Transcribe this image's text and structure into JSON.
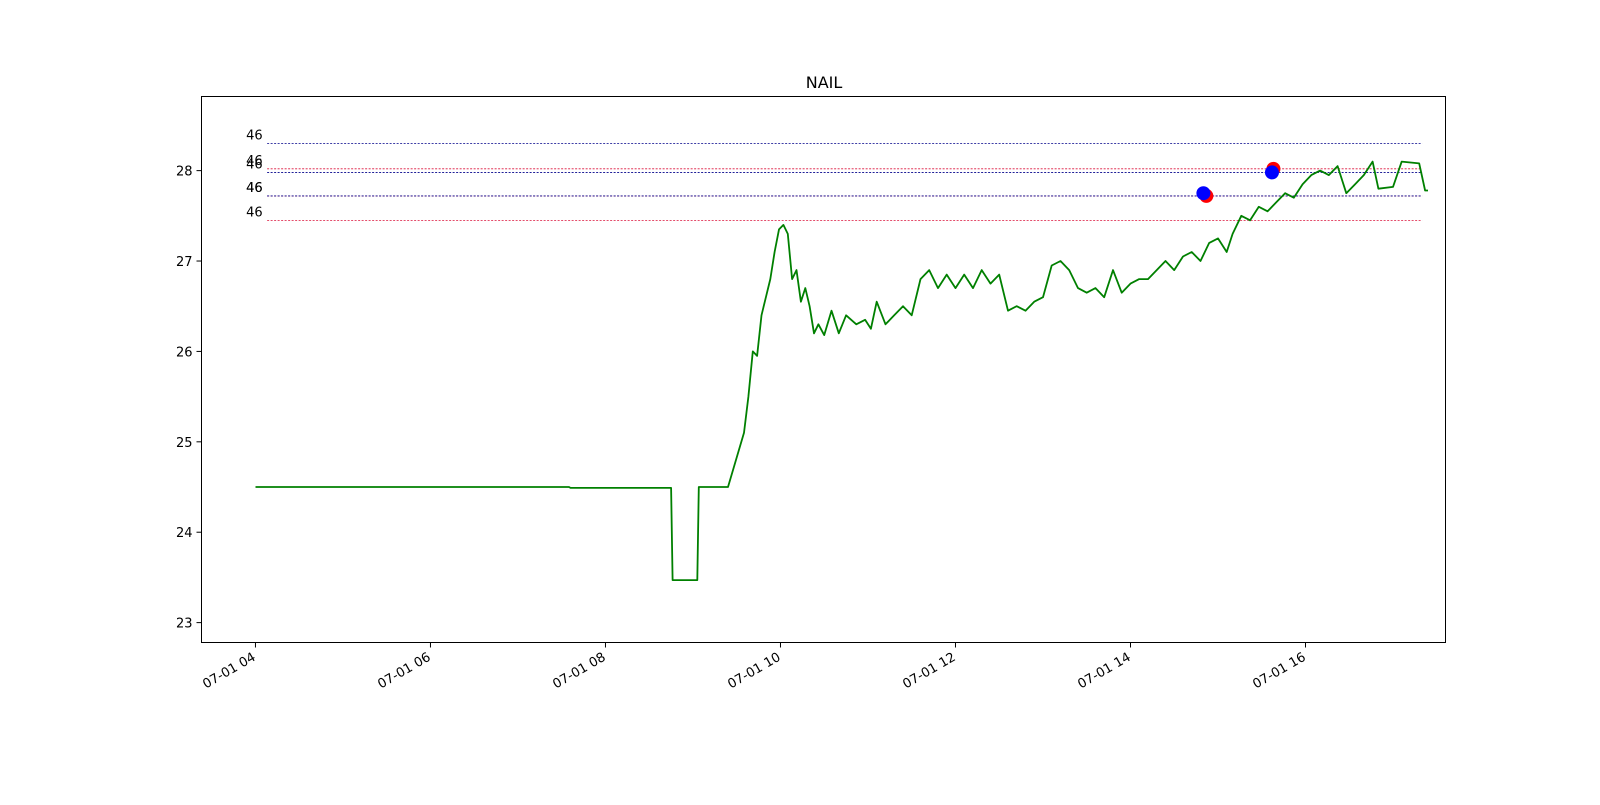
{
  "chart_data": {
    "type": "line",
    "title": "NAIL",
    "xlabel": "",
    "ylabel": "",
    "xlim": [
      "07-01 03:23",
      "07-01 17:36"
    ],
    "ylim": [
      22.78,
      28.82
    ],
    "grid": false,
    "legend": "none",
    "x_ticks": [
      "07-01 04",
      "07-01 06",
      "07-01 08",
      "07-01 10",
      "07-01 12",
      "07-01 14",
      "07-01 16"
    ],
    "y_ticks": [
      "23",
      "24",
      "25",
      "26",
      "27",
      "28"
    ],
    "series": [
      {
        "color": "#008000",
        "points": [
          [
            "07-01 04:00",
            24.5
          ],
          [
            "07-01 07:35",
            24.5
          ],
          [
            "07-01 07:36",
            24.49
          ],
          [
            "07-01 08:45",
            24.49
          ],
          [
            "07-01 08:46",
            23.47
          ],
          [
            "07-01 09:03",
            23.47
          ],
          [
            "07-01 09:04",
            24.5
          ],
          [
            "07-01 09:24",
            24.5
          ],
          [
            "07-01 09:35",
            25.1
          ],
          [
            "07-01 09:38",
            25.5
          ],
          [
            "07-01 09:41",
            26.0
          ],
          [
            "07-01 09:44",
            25.95
          ],
          [
            "07-01 09:47",
            26.4
          ],
          [
            "07-01 09:50",
            26.6
          ],
          [
            "07-01 09:53",
            26.8
          ],
          [
            "07-01 09:56",
            27.1
          ],
          [
            "07-01 09:59",
            27.35
          ],
          [
            "07-01 10:02",
            27.4
          ],
          [
            "07-01 10:05",
            27.3
          ],
          [
            "07-01 10:08",
            26.8
          ],
          [
            "07-01 10:11",
            26.9
          ],
          [
            "07-01 10:14",
            26.55
          ],
          [
            "07-01 10:17",
            26.7
          ],
          [
            "07-01 10:20",
            26.5
          ],
          [
            "07-01 10:23",
            26.2
          ],
          [
            "07-01 10:26",
            26.3
          ],
          [
            "07-01 10:30",
            26.18
          ],
          [
            "07-01 10:35",
            26.45
          ],
          [
            "07-01 10:40",
            26.2
          ],
          [
            "07-01 10:45",
            26.4
          ],
          [
            "07-01 10:52",
            26.3
          ],
          [
            "07-01 10:58",
            26.35
          ],
          [
            "07-01 11:02",
            26.25
          ],
          [
            "07-01 11:06",
            26.55
          ],
          [
            "07-01 11:12",
            26.3
          ],
          [
            "07-01 11:18",
            26.4
          ],
          [
            "07-01 11:24",
            26.5
          ],
          [
            "07-01 11:30",
            26.4
          ],
          [
            "07-01 11:36",
            26.8
          ],
          [
            "07-01 11:42",
            26.9
          ],
          [
            "07-01 11:48",
            26.7
          ],
          [
            "07-01 11:54",
            26.85
          ],
          [
            "07-01 12:00",
            26.7
          ],
          [
            "07-01 12:06",
            26.85
          ],
          [
            "07-01 12:12",
            26.7
          ],
          [
            "07-01 12:18",
            26.9
          ],
          [
            "07-01 12:24",
            26.75
          ],
          [
            "07-01 12:30",
            26.85
          ],
          [
            "07-01 12:36",
            26.45
          ],
          [
            "07-01 12:42",
            26.5
          ],
          [
            "07-01 12:48",
            26.45
          ],
          [
            "07-01 12:54",
            26.55
          ],
          [
            "07-01 13:00",
            26.6
          ],
          [
            "07-01 13:06",
            26.95
          ],
          [
            "07-01 13:12",
            27.0
          ],
          [
            "07-01 13:18",
            26.9
          ],
          [
            "07-01 13:24",
            26.7
          ],
          [
            "07-01 13:30",
            26.65
          ],
          [
            "07-01 13:36",
            26.7
          ],
          [
            "07-01 13:42",
            26.6
          ],
          [
            "07-01 13:48",
            26.9
          ],
          [
            "07-01 13:54",
            26.65
          ],
          [
            "07-01 14:00",
            26.75
          ],
          [
            "07-01 14:06",
            26.8
          ],
          [
            "07-01 14:12",
            26.8
          ],
          [
            "07-01 14:18",
            26.9
          ],
          [
            "07-01 14:24",
            27.0
          ],
          [
            "07-01 14:30",
            26.9
          ],
          [
            "07-01 14:36",
            27.05
          ],
          [
            "07-01 14:42",
            27.1
          ],
          [
            "07-01 14:48",
            27.0
          ],
          [
            "07-01 14:54",
            27.2
          ],
          [
            "07-01 15:00",
            27.25
          ],
          [
            "07-01 15:06",
            27.1
          ],
          [
            "07-01 15:10",
            27.3
          ],
          [
            "07-01 15:16",
            27.5
          ],
          [
            "07-01 15:22",
            27.45
          ],
          [
            "07-01 15:28",
            27.6
          ],
          [
            "07-01 15:34",
            27.55
          ],
          [
            "07-01 15:40",
            27.65
          ],
          [
            "07-01 15:46",
            27.75
          ],
          [
            "07-01 15:52",
            27.7
          ],
          [
            "07-01 15:58",
            27.85
          ],
          [
            "07-01 16:04",
            27.95
          ],
          [
            "07-01 16:10",
            28.0
          ],
          [
            "07-01 16:16",
            27.95
          ],
          [
            "07-01 16:22",
            28.05
          ],
          [
            "07-01 16:28",
            27.75
          ],
          [
            "07-01 16:34",
            27.85
          ],
          [
            "07-01 16:40",
            27.95
          ],
          [
            "07-01 16:46",
            28.1
          ],
          [
            "07-01 16:50",
            27.8
          ],
          [
            "07-01 17:00",
            27.82
          ],
          [
            "07-01 17:06",
            28.1
          ],
          [
            "07-01 17:18",
            28.08
          ],
          [
            "07-01 17:22",
            27.78
          ],
          [
            "07-01 17:24",
            27.78
          ]
        ]
      }
    ],
    "levels": [
      {
        "label": "46",
        "y": 28.3,
        "color": "#00008b"
      },
      {
        "label": "46",
        "y": 28.02,
        "color": "#dc143c"
      },
      {
        "label": "46",
        "y": 27.98,
        "color": "#00008b"
      },
      {
        "label": "46",
        "y": 27.72,
        "color": "#dc143c"
      },
      {
        "label": "46",
        "y": 27.72,
        "color": "#00008b"
      },
      {
        "label": "46",
        "y": 27.45,
        "color": "#dc143c"
      }
    ],
    "markers": [
      {
        "x": "07-01 14:52",
        "y": 27.72,
        "color": "#ff0000"
      },
      {
        "x": "07-01 14:50",
        "y": 27.75,
        "color": "#0000ff"
      },
      {
        "x": "07-01 15:38",
        "y": 28.02,
        "color": "#ff0000"
      },
      {
        "x": "07-01 15:37",
        "y": 27.98,
        "color": "#0000ff"
      }
    ]
  }
}
